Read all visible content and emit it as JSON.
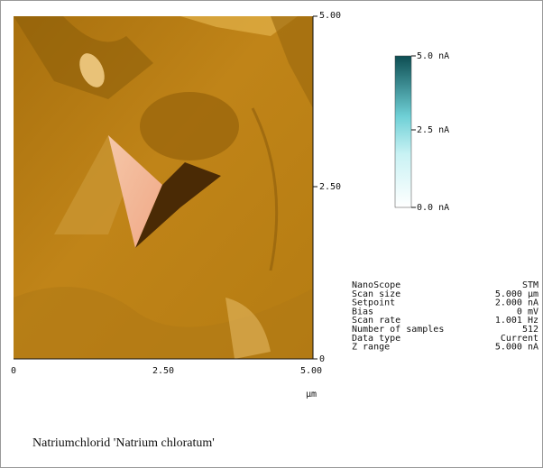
{
  "axes": {
    "right_ticks": [
      "5.00",
      "2.50",
      "0"
    ],
    "bottom_ticks": [
      "0",
      "2.50",
      "5.00"
    ],
    "unit": "μm"
  },
  "colorbar": {
    "labels": [
      "5.0 nA",
      "2.5 nA",
      "0.0 nA"
    ]
  },
  "parameters": [
    [
      "NanoScope",
      "STM"
    ],
    [
      "Scan size",
      "5.000 μm"
    ],
    [
      "Setpoint",
      "2.000 nA"
    ],
    [
      "Bias",
      "0 mV"
    ],
    [
      "Scan rate",
      "1.001 Hz"
    ],
    [
      "Number of samples",
      "512"
    ],
    [
      "Data type",
      "Current"
    ],
    [
      "Z range",
      "5.000 nA"
    ]
  ],
  "caption": "Natriumchlorid 'Natrium chloratum'"
}
